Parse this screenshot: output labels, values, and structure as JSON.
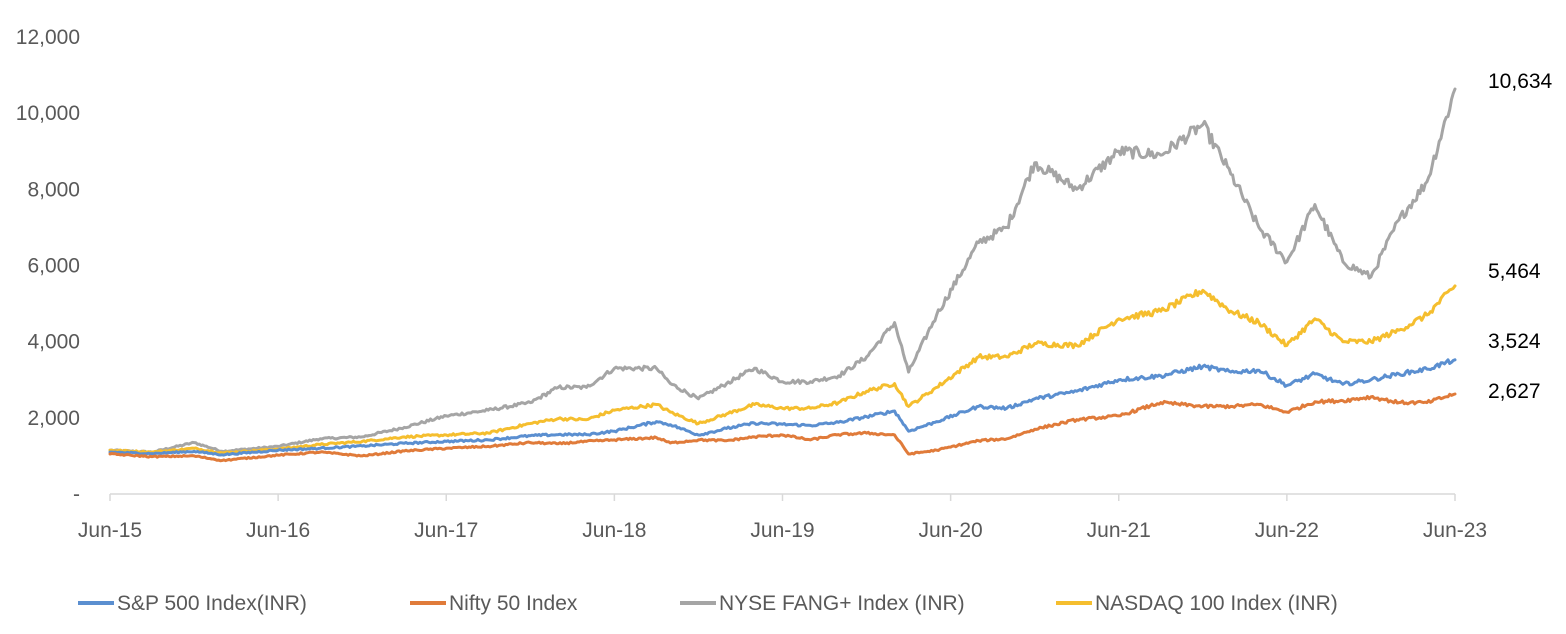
{
  "chart_data": {
    "type": "line",
    "title": "",
    "xlabel": "",
    "ylabel": "",
    "x_ticks": [
      "Jun-15",
      "Jun-16",
      "Jun-17",
      "Jun-18",
      "Jun-19",
      "Jun-20",
      "Jun-21",
      "Jun-22",
      "Jun-23"
    ],
    "y_ticks": [
      "-",
      "2,000",
      "4,000",
      "6,000",
      "8,000",
      "10,000",
      "12,000"
    ],
    "ylim": [
      0,
      12000
    ],
    "xlim": [
      "2015-06",
      "2023-06"
    ],
    "grid": false,
    "legend_position": "bottom",
    "series": [
      {
        "name": "S&P 500 Index(INR)",
        "color": "#5B8FD0",
        "end_label": "3,524",
        "points": [
          [
            "2015-06",
            1100
          ],
          [
            "2015-09",
            1060
          ],
          [
            "2015-12",
            1120
          ],
          [
            "2016-02",
            1030
          ],
          [
            "2016-06",
            1150
          ],
          [
            "2016-09",
            1200
          ],
          [
            "2016-12",
            1260
          ],
          [
            "2017-03",
            1330
          ],
          [
            "2017-06",
            1380
          ],
          [
            "2017-09",
            1420
          ],
          [
            "2017-12",
            1530
          ],
          [
            "2018-02",
            1560
          ],
          [
            "2018-04",
            1560
          ],
          [
            "2018-06",
            1650
          ],
          [
            "2018-09",
            1900
          ],
          [
            "2018-10",
            1820
          ],
          [
            "2018-12",
            1550
          ],
          [
            "2019-02",
            1720
          ],
          [
            "2019-04",
            1860
          ],
          [
            "2019-06",
            1830
          ],
          [
            "2019-08",
            1800
          ],
          [
            "2019-10",
            1880
          ],
          [
            "2019-12",
            2030
          ],
          [
            "2020-02",
            2180
          ],
          [
            "2020-03",
            1650
          ],
          [
            "2020-05",
            1900
          ],
          [
            "2020-08",
            2300
          ],
          [
            "2020-10",
            2250
          ],
          [
            "2020-12",
            2500
          ],
          [
            "2021-03",
            2700
          ],
          [
            "2021-06",
            3000
          ],
          [
            "2021-09",
            3100
          ],
          [
            "2021-12",
            3350
          ],
          [
            "2022-02",
            3200
          ],
          [
            "2022-04",
            3250
          ],
          [
            "2022-06",
            2850
          ],
          [
            "2022-08",
            3150
          ],
          [
            "2022-10",
            2880
          ],
          [
            "2022-12",
            3000
          ],
          [
            "2023-02",
            3150
          ],
          [
            "2023-04",
            3280
          ],
          [
            "2023-06",
            3524
          ]
        ]
      },
      {
        "name": "Nifty 50 Index",
        "color": "#E07B3A",
        "end_label": "2,627",
        "points": [
          [
            "2015-06",
            1050
          ],
          [
            "2015-09",
            980
          ],
          [
            "2015-12",
            1000
          ],
          [
            "2016-02",
            880
          ],
          [
            "2016-06",
            1020
          ],
          [
            "2016-09",
            1100
          ],
          [
            "2016-12",
            1000
          ],
          [
            "2017-03",
            1130
          ],
          [
            "2017-06",
            1200
          ],
          [
            "2017-09",
            1250
          ],
          [
            "2017-12",
            1350
          ],
          [
            "2018-02",
            1320
          ],
          [
            "2018-04",
            1380
          ],
          [
            "2018-06",
            1420
          ],
          [
            "2018-09",
            1480
          ],
          [
            "2018-10",
            1340
          ],
          [
            "2018-12",
            1420
          ],
          [
            "2019-02",
            1400
          ],
          [
            "2019-04",
            1500
          ],
          [
            "2019-06",
            1550
          ],
          [
            "2019-08",
            1420
          ],
          [
            "2019-10",
            1560
          ],
          [
            "2019-12",
            1600
          ],
          [
            "2020-02",
            1550
          ],
          [
            "2020-03",
            1050
          ],
          [
            "2020-05",
            1150
          ],
          [
            "2020-08",
            1400
          ],
          [
            "2020-10",
            1450
          ],
          [
            "2020-12",
            1700
          ],
          [
            "2021-03",
            1950
          ],
          [
            "2021-06",
            2050
          ],
          [
            "2021-09",
            2400
          ],
          [
            "2021-12",
            2300
          ],
          [
            "2022-02",
            2300
          ],
          [
            "2022-04",
            2350
          ],
          [
            "2022-06",
            2150
          ],
          [
            "2022-08",
            2420
          ],
          [
            "2022-10",
            2450
          ],
          [
            "2022-12",
            2550
          ],
          [
            "2023-02",
            2400
          ],
          [
            "2023-04",
            2400
          ],
          [
            "2023-06",
            2627
          ]
        ]
      },
      {
        "name": "NYSE FANG+ Index (INR)",
        "color": "#A5A5A5",
        "end_label": "10,634",
        "points": [
          [
            "2015-06",
            1150
          ],
          [
            "2015-09",
            1100
          ],
          [
            "2015-12",
            1350
          ],
          [
            "2016-02",
            1120
          ],
          [
            "2016-06",
            1250
          ],
          [
            "2016-09",
            1450
          ],
          [
            "2016-12",
            1500
          ],
          [
            "2017-03",
            1750
          ],
          [
            "2017-06",
            2050
          ],
          [
            "2017-09",
            2200
          ],
          [
            "2017-12",
            2400
          ],
          [
            "2018-02",
            2800
          ],
          [
            "2018-04",
            2800
          ],
          [
            "2018-06",
            3300
          ],
          [
            "2018-09",
            3300
          ],
          [
            "2018-10",
            2900
          ],
          [
            "2018-12",
            2500
          ],
          [
            "2019-02",
            2900
          ],
          [
            "2019-04",
            3300
          ],
          [
            "2019-06",
            2950
          ],
          [
            "2019-08",
            2950
          ],
          [
            "2019-10",
            3100
          ],
          [
            "2019-12",
            3600
          ],
          [
            "2020-02",
            4500
          ],
          [
            "2020-03",
            3200
          ],
          [
            "2020-05",
            4700
          ],
          [
            "2020-08",
            6600
          ],
          [
            "2020-10",
            7000
          ],
          [
            "2020-12",
            8700
          ],
          [
            "2021-03",
            8000
          ],
          [
            "2021-06",
            9000
          ],
          [
            "2021-09",
            8900
          ],
          [
            "2021-12",
            9700
          ],
          [
            "2022-02",
            8400
          ],
          [
            "2022-04",
            7000
          ],
          [
            "2022-06",
            6100
          ],
          [
            "2022-08",
            7600
          ],
          [
            "2022-10",
            6100
          ],
          [
            "2022-12",
            5700
          ],
          [
            "2023-02",
            7200
          ],
          [
            "2023-04",
            8200
          ],
          [
            "2023-06",
            10634
          ]
        ]
      },
      {
        "name": "NASDAQ 100 Index (INR)",
        "color": "#F5BE2E",
        "end_label": "5,464",
        "points": [
          [
            "2015-06",
            1150
          ],
          [
            "2015-09",
            1100
          ],
          [
            "2015-12",
            1200
          ],
          [
            "2016-02",
            1080
          ],
          [
            "2016-06",
            1180
          ],
          [
            "2016-09",
            1300
          ],
          [
            "2016-12",
            1380
          ],
          [
            "2017-03",
            1500
          ],
          [
            "2017-06",
            1550
          ],
          [
            "2017-09",
            1600
          ],
          [
            "2017-12",
            1850
          ],
          [
            "2018-02",
            1980
          ],
          [
            "2018-04",
            1950
          ],
          [
            "2018-06",
            2200
          ],
          [
            "2018-09",
            2350
          ],
          [
            "2018-10",
            2150
          ],
          [
            "2018-12",
            1850
          ],
          [
            "2019-02",
            2100
          ],
          [
            "2019-04",
            2350
          ],
          [
            "2019-06",
            2250
          ],
          [
            "2019-08",
            2250
          ],
          [
            "2019-10",
            2400
          ],
          [
            "2019-12",
            2700
          ],
          [
            "2020-02",
            2900
          ],
          [
            "2020-03",
            2300
          ],
          [
            "2020-05",
            2800
          ],
          [
            "2020-08",
            3600
          ],
          [
            "2020-10",
            3600
          ],
          [
            "2020-12",
            3950
          ],
          [
            "2021-03",
            3900
          ],
          [
            "2021-06",
            4600
          ],
          [
            "2021-09",
            4800
          ],
          [
            "2021-12",
            5350
          ],
          [
            "2022-02",
            4800
          ],
          [
            "2022-04",
            4500
          ],
          [
            "2022-06",
            3900
          ],
          [
            "2022-08",
            4600
          ],
          [
            "2022-10",
            4000
          ],
          [
            "2022-12",
            4000
          ],
          [
            "2023-02",
            4300
          ],
          [
            "2023-04",
            4700
          ],
          [
            "2023-06",
            5464
          ]
        ]
      }
    ]
  }
}
